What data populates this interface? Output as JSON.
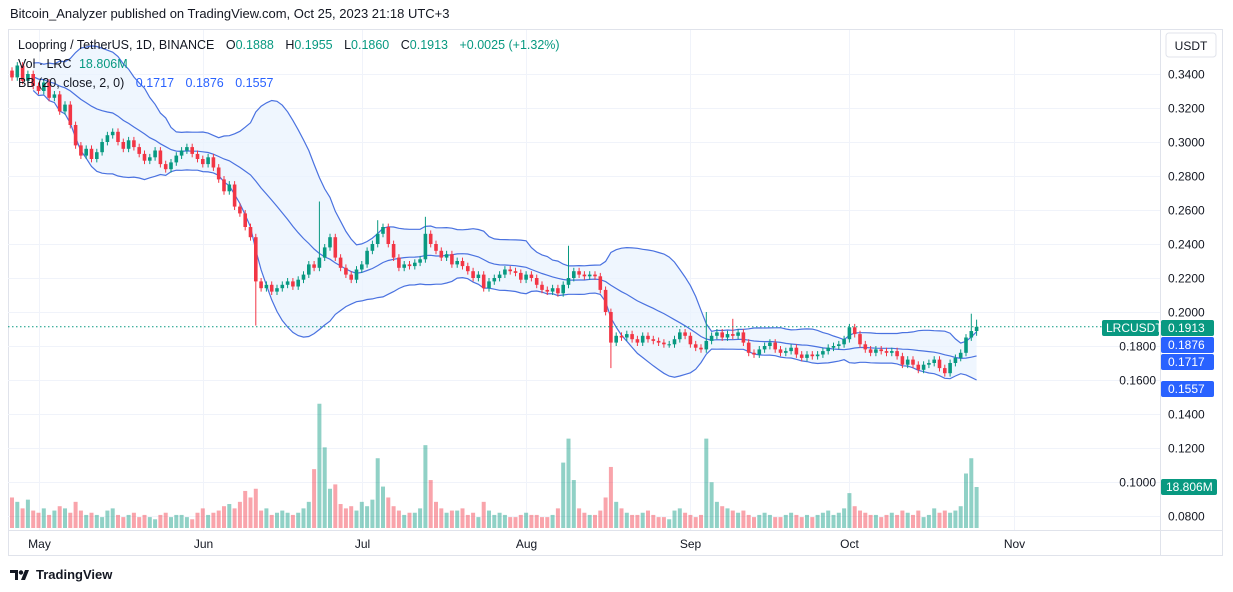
{
  "header": {
    "published": "Bitcoin_Analyzer published on TradingView.com, Oct 25, 2023 21:18 UTC+3"
  },
  "legend": {
    "symbol": "Loopring / TetherUS, 1D, BINANCE",
    "o_label": "O",
    "o": "0.1888",
    "h_label": "H",
    "h": "0.1955",
    "l_label": "L",
    "l": "0.1860",
    "c_label": "C",
    "c": "0.1913",
    "change": "+0.0025 (+1.32%)",
    "vol_label": "Vol · LRC",
    "vol": "18.806M",
    "bb_label": "BB (20, close, 2, 0)",
    "bb_basis": "0.1717",
    "bb_upper": "0.1876",
    "bb_lower": "0.1557"
  },
  "axis": {
    "currency": "USDT",
    "symbol_tag": "LRCUSDT",
    "last_price": "0.1913",
    "bb_upper_tag": "0.1876",
    "bb_basis_tag": "0.1717",
    "bb_lower_tag": "0.1557",
    "volume_tag": "18.806M"
  },
  "footer": {
    "brand": "TradingView"
  },
  "colors": {
    "up": "#089981",
    "down": "#f23645",
    "bb": "#4a72e0",
    "bb_fill": "#e8f2fd",
    "accent_blue": "#2962ff"
  },
  "chart_data": {
    "type": "candlestick",
    "title": "Loopring / TetherUS, 1D, BINANCE",
    "interval": "1D",
    "x_range": [
      "2023-04-26",
      "2023-10-25"
    ],
    "x_ticks": [
      "May",
      "Jun",
      "Jul",
      "Aug",
      "Sep",
      "Oct",
      "Nov"
    ],
    "y_ticks": [
      "0.3400",
      "0.3200",
      "0.3000",
      "0.2800",
      "0.2600",
      "0.2400",
      "0.2200",
      "0.2000",
      "0.1800",
      "0.1600",
      "0.1400",
      "0.1200",
      "0.1000",
      "0.0800"
    ],
    "ylim": [
      0.075,
      0.355
    ],
    "grid": true,
    "first_open": 0.342,
    "close": [
      0.338,
      0.345,
      0.336,
      0.34,
      0.333,
      0.33,
      0.335,
      0.326,
      0.328,
      0.318,
      0.322,
      0.31,
      0.298,
      0.292,
      0.296,
      0.29,
      0.294,
      0.3,
      0.304,
      0.306,
      0.3,
      0.296,
      0.301,
      0.297,
      0.293,
      0.289,
      0.291,
      0.295,
      0.287,
      0.284,
      0.288,
      0.292,
      0.295,
      0.297,
      0.293,
      0.29,
      0.287,
      0.291,
      0.285,
      0.278,
      0.271,
      0.275,
      0.262,
      0.258,
      0.25,
      0.244,
      0.218,
      0.214,
      0.216,
      0.212,
      0.214,
      0.216,
      0.218,
      0.215,
      0.219,
      0.222,
      0.228,
      0.226,
      0.232,
      0.238,
      0.244,
      0.232,
      0.226,
      0.222,
      0.219,
      0.225,
      0.228,
      0.236,
      0.24,
      0.246,
      0.25,
      0.24,
      0.232,
      0.226,
      0.228,
      0.227,
      0.229,
      0.231,
      0.246,
      0.24,
      0.236,
      0.232,
      0.234,
      0.228,
      0.23,
      0.227,
      0.224,
      0.22,
      0.222,
      0.214,
      0.218,
      0.22,
      0.222,
      0.225,
      0.224,
      0.223,
      0.219,
      0.222,
      0.22,
      0.216,
      0.213,
      0.212,
      0.214,
      0.211,
      0.216,
      0.22,
      0.224,
      0.222,
      0.221,
      0.222,
      0.221,
      0.213,
      0.2,
      0.182,
      0.186,
      0.185,
      0.187,
      0.184,
      0.182,
      0.186,
      0.184,
      0.183,
      0.182,
      0.181,
      0.181,
      0.184,
      0.188,
      0.186,
      0.181,
      0.179,
      0.178,
      0.183,
      0.186,
      0.188,
      0.185,
      0.187,
      0.186,
      0.188,
      0.182,
      0.176,
      0.175,
      0.178,
      0.18,
      0.182,
      0.178,
      0.176,
      0.177,
      0.179,
      0.175,
      0.173,
      0.175,
      0.174,
      0.175,
      0.177,
      0.179,
      0.18,
      0.181,
      0.184,
      0.191,
      0.187,
      0.181,
      0.178,
      0.176,
      0.178,
      0.177,
      0.176,
      0.177,
      0.174,
      0.169,
      0.172,
      0.169,
      0.166,
      0.169,
      0.17,
      0.172,
      0.167,
      0.164,
      0.17,
      0.173,
      0.176,
      0.185,
      0.1888,
      0.1913
    ],
    "volume_millions": [
      14,
      12,
      9,
      13,
      8,
      7,
      9,
      6,
      8,
      10,
      9,
      7,
      12,
      8,
      6,
      7,
      6,
      5,
      8,
      9,
      6,
      5,
      6,
      7,
      5,
      6,
      5,
      4,
      6,
      7,
      5,
      6,
      6,
      5,
      4,
      7,
      9,
      6,
      7,
      8,
      10,
      11,
      9,
      12,
      17,
      14,
      18,
      8,
      9,
      6,
      7,
      8,
      7,
      6,
      7,
      9,
      12,
      27,
      57,
      37,
      18,
      20,
      11,
      9,
      10,
      8,
      12,
      10,
      13,
      32,
      19,
      14,
      10,
      8,
      6,
      7,
      7,
      9,
      38,
      22,
      12,
      9,
      7,
      8,
      8,
      9,
      6,
      7,
      5,
      12,
      8,
      6,
      7,
      6,
      5,
      5,
      6,
      7,
      6,
      6,
      5,
      5,
      6,
      9,
      30,
      41,
      22,
      9,
      7,
      6,
      6,
      8,
      14,
      28,
      12,
      9,
      7,
      6,
      6,
      7,
      8,
      6,
      5,
      5,
      4,
      8,
      9,
      7,
      6,
      5,
      6,
      41,
      21,
      12,
      10,
      9,
      8,
      7,
      8,
      6,
      5,
      6,
      7,
      6,
      5,
      5,
      6,
      7,
      6,
      5,
      6,
      5,
      6,
      7,
      8,
      6,
      7,
      9,
      16,
      10,
      8,
      7,
      6,
      6,
      5,
      6,
      7,
      6,
      8,
      7,
      6,
      8,
      5,
      6,
      9,
      7,
      8,
      7,
      8,
      10,
      25,
      32,
      18.806
    ],
    "notable_wicks": [
      {
        "date": "Jun 11",
        "low": 0.192
      },
      {
        "date": "Jun 23",
        "high": 0.265
      },
      {
        "date": "Jul 4",
        "high": 0.254
      },
      {
        "date": "Jul 13",
        "high": 0.256
      },
      {
        "date": "Aug 9",
        "high": 0.239
      },
      {
        "date": "Aug 17",
        "low": 0.167
      },
      {
        "date": "Sep 4",
        "high": 0.2
      },
      {
        "date": "Sep 9",
        "high": 0.196
      },
      {
        "date": "Oct 1",
        "high": 0.193
      },
      {
        "date": "Oct 24",
        "high": 0.199
      },
      {
        "date": "Oct 25",
        "high": 0.1955,
        "low": 0.186
      }
    ],
    "indicators": [
      {
        "name": "BB",
        "length": 20,
        "source": "close",
        "mult": 2
      }
    ]
  }
}
